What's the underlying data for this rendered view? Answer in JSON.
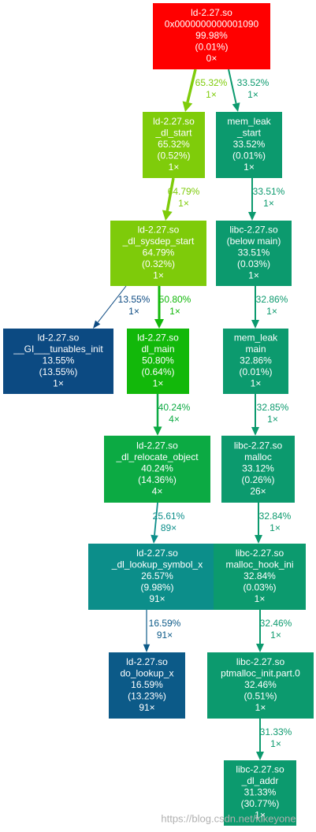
{
  "nodes": [
    {
      "lines": [
        "ld-2.27.so",
        "0x0000000000001090",
        "99.98%",
        "(0.01%)",
        "0×"
      ],
      "color": "#ff0000"
    },
    {
      "lines": [
        "ld-2.27.so",
        "_dl_start",
        "65.32%",
        "(0.52%)",
        "1×"
      ],
      "color": "#7fcc0a"
    },
    {
      "lines": [
        "mem_leak",
        "_start",
        "33.52%",
        "(0.01%)",
        "1×"
      ],
      "color": "#0c9a6e"
    },
    {
      "lines": [
        "ld-2.27.so",
        "_dl_sysdep_start",
        "64.79%",
        "(0.32%)",
        "1×"
      ],
      "color": "#7ecb0a"
    },
    {
      "lines": [
        "libc-2.27.so",
        "(below main)",
        "33.51%",
        "(0.03%)",
        "1×"
      ],
      "color": "#0c9a6e"
    },
    {
      "lines": [
        "ld-2.27.so",
        "__GI___tunables_init",
        "13.55%",
        "(13.55%)",
        "1×"
      ],
      "color": "#0c4a82"
    },
    {
      "lines": [
        "ld-2.27.so",
        "dl_main",
        "50.80%",
        "(0.64%)",
        "1×"
      ],
      "color": "#12b80a"
    },
    {
      "lines": [
        "mem_leak",
        "main",
        "32.86%",
        "(0.01%)",
        "1×"
      ],
      "color": "#0c9a6e"
    },
    {
      "lines": [
        "ld-2.27.so",
        "_dl_relocate_object",
        "40.24%",
        "(14.36%)",
        "4×"
      ],
      "color": "#0caa43"
    },
    {
      "lines": [
        "libc-2.27.so",
        "malloc",
        "33.12%",
        "(0.26%)",
        "26×"
      ],
      "color": "#0c9a6e"
    },
    {
      "lines": [
        "ld-2.27.so",
        "_dl_lookup_symbol_x",
        "26.57%",
        "(9.98%)",
        "91×"
      ],
      "color": "#0c8e8a"
    },
    {
      "lines": [
        "libc-2.27.so",
        "malloc_hook_ini",
        "32.84%",
        "(0.03%)",
        "1×"
      ],
      "color": "#0c9a6e"
    },
    {
      "lines": [
        "ld-2.27.so",
        "do_lookup_x",
        "16.59%",
        "(13.23%)",
        "91×"
      ],
      "color": "#0c5a88"
    },
    {
      "lines": [
        "libc-2.27.so",
        "ptmalloc_init.part.0",
        "32.46%",
        "(0.51%)",
        "1×"
      ],
      "color": "#0c9a6e"
    },
    {
      "lines": [
        "libc-2.27.so",
        "_dl_addr",
        "31.33%",
        "(30.77%)",
        "1×"
      ],
      "color": "#0c9a6e"
    }
  ],
  "edges": [
    {
      "lines": [
        "65.32%",
        "1×"
      ],
      "color": "#7fcc0a"
    },
    {
      "lines": [
        "33.52%",
        "1×"
      ],
      "color": "#0c9a6e"
    },
    {
      "lines": [
        "64.79%",
        "1×"
      ],
      "color": "#7ecb0a"
    },
    {
      "lines": [
        "33.51%",
        "1×"
      ],
      "color": "#0c9a6e"
    },
    {
      "lines": [
        "13.55%",
        "1×"
      ],
      "color": "#0c4a82"
    },
    {
      "lines": [
        "50.80%",
        "1×"
      ],
      "color": "#12b80a"
    },
    {
      "lines": [
        "32.86%",
        "1×"
      ],
      "color": "#0c9a6e"
    },
    {
      "lines": [
        "40.24%",
        "4×"
      ],
      "color": "#0caa43"
    },
    {
      "lines": [
        "32.85%",
        "1×"
      ],
      "color": "#0c9a6e"
    },
    {
      "lines": [
        "25.61%",
        "89×"
      ],
      "color": "#0c8e8a"
    },
    {
      "lines": [
        "32.84%",
        "1×"
      ],
      "color": "#0c9a6e"
    },
    {
      "lines": [
        "16.59%",
        "91×"
      ],
      "color": "#0c5a88"
    },
    {
      "lines": [
        "32.46%",
        "1×"
      ],
      "color": "#0c9a6e"
    },
    {
      "lines": [
        "31.33%",
        "1×"
      ],
      "color": "#0c9a6e"
    }
  ],
  "watermark": "https://blog.csdn.net/kikeyone"
}
